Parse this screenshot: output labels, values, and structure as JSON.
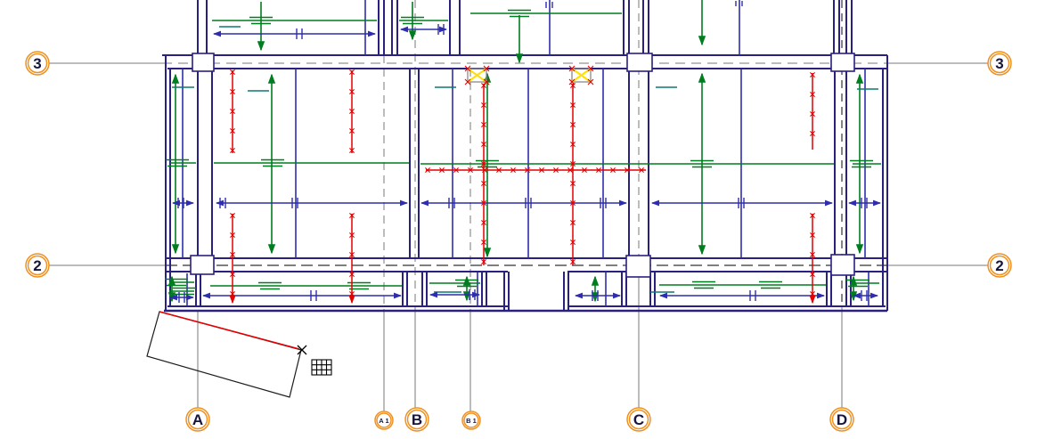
{
  "grids": {
    "row_top": "3",
    "row_bottom": "2",
    "columns": [
      "A",
      "A 1",
      "B",
      "B 1",
      "C",
      "D"
    ]
  },
  "colors": {
    "wall": "#2a2080",
    "dimension_blue": "#2d2dae",
    "joist_green": "#007d1f",
    "teal": "#0c7a70",
    "marker_red": "#e60000",
    "grid_gray": "#7a7a7a",
    "grid_dark": "#333333",
    "bubble_orange": "#f0901e",
    "highlight_yellow": "#ffe000"
  },
  "icons": {
    "cursor": "crosshair-cursor",
    "cursor_badge": "table-grid-cursor-icon"
  }
}
